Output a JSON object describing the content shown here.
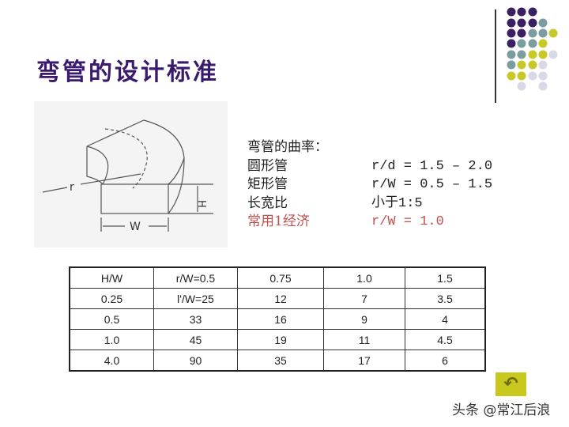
{
  "slide": {
    "title": "弯管的设计标准",
    "diagram": {
      "label_r": "r",
      "label_h": "H",
      "label_w": "W"
    },
    "info": [
      {
        "label": "弯管的曲率：",
        "value": ""
      },
      {
        "label": "圆形管",
        "value": "r/d  = 1.5 – 2.0"
      },
      {
        "label": "矩形管",
        "value": "r/W  = 0.5 – 1.5"
      },
      {
        "label": "长宽比",
        "value": "小于1:5"
      },
      {
        "label": "常用1经济",
        "value": "r/W  = 1.0",
        "highlight": true
      }
    ],
    "table": {
      "header": [
        "H/W",
        "r/W=0.5",
        "0.75",
        "1.0",
        "1.5"
      ],
      "rows": [
        [
          "0.25",
          "l'/W=25",
          "12",
          "7",
          "3.5"
        ],
        [
          "0.5",
          "33",
          "16",
          "9",
          "4"
        ],
        [
          "1.0",
          "45",
          "19",
          "11",
          "4.5"
        ],
        [
          "4.0",
          "90",
          "35",
          "17",
          "6"
        ]
      ]
    },
    "nav_icon": "return-arrow-icon",
    "watermark": "头条 @常江后浪",
    "colors": {
      "title": "#3a1a6e",
      "highlight": "#c0504d",
      "purple": "#3b1f63",
      "teal": "#7a9e9f",
      "yellow": "#c8c828",
      "lavender": "#d8d8e6"
    }
  }
}
